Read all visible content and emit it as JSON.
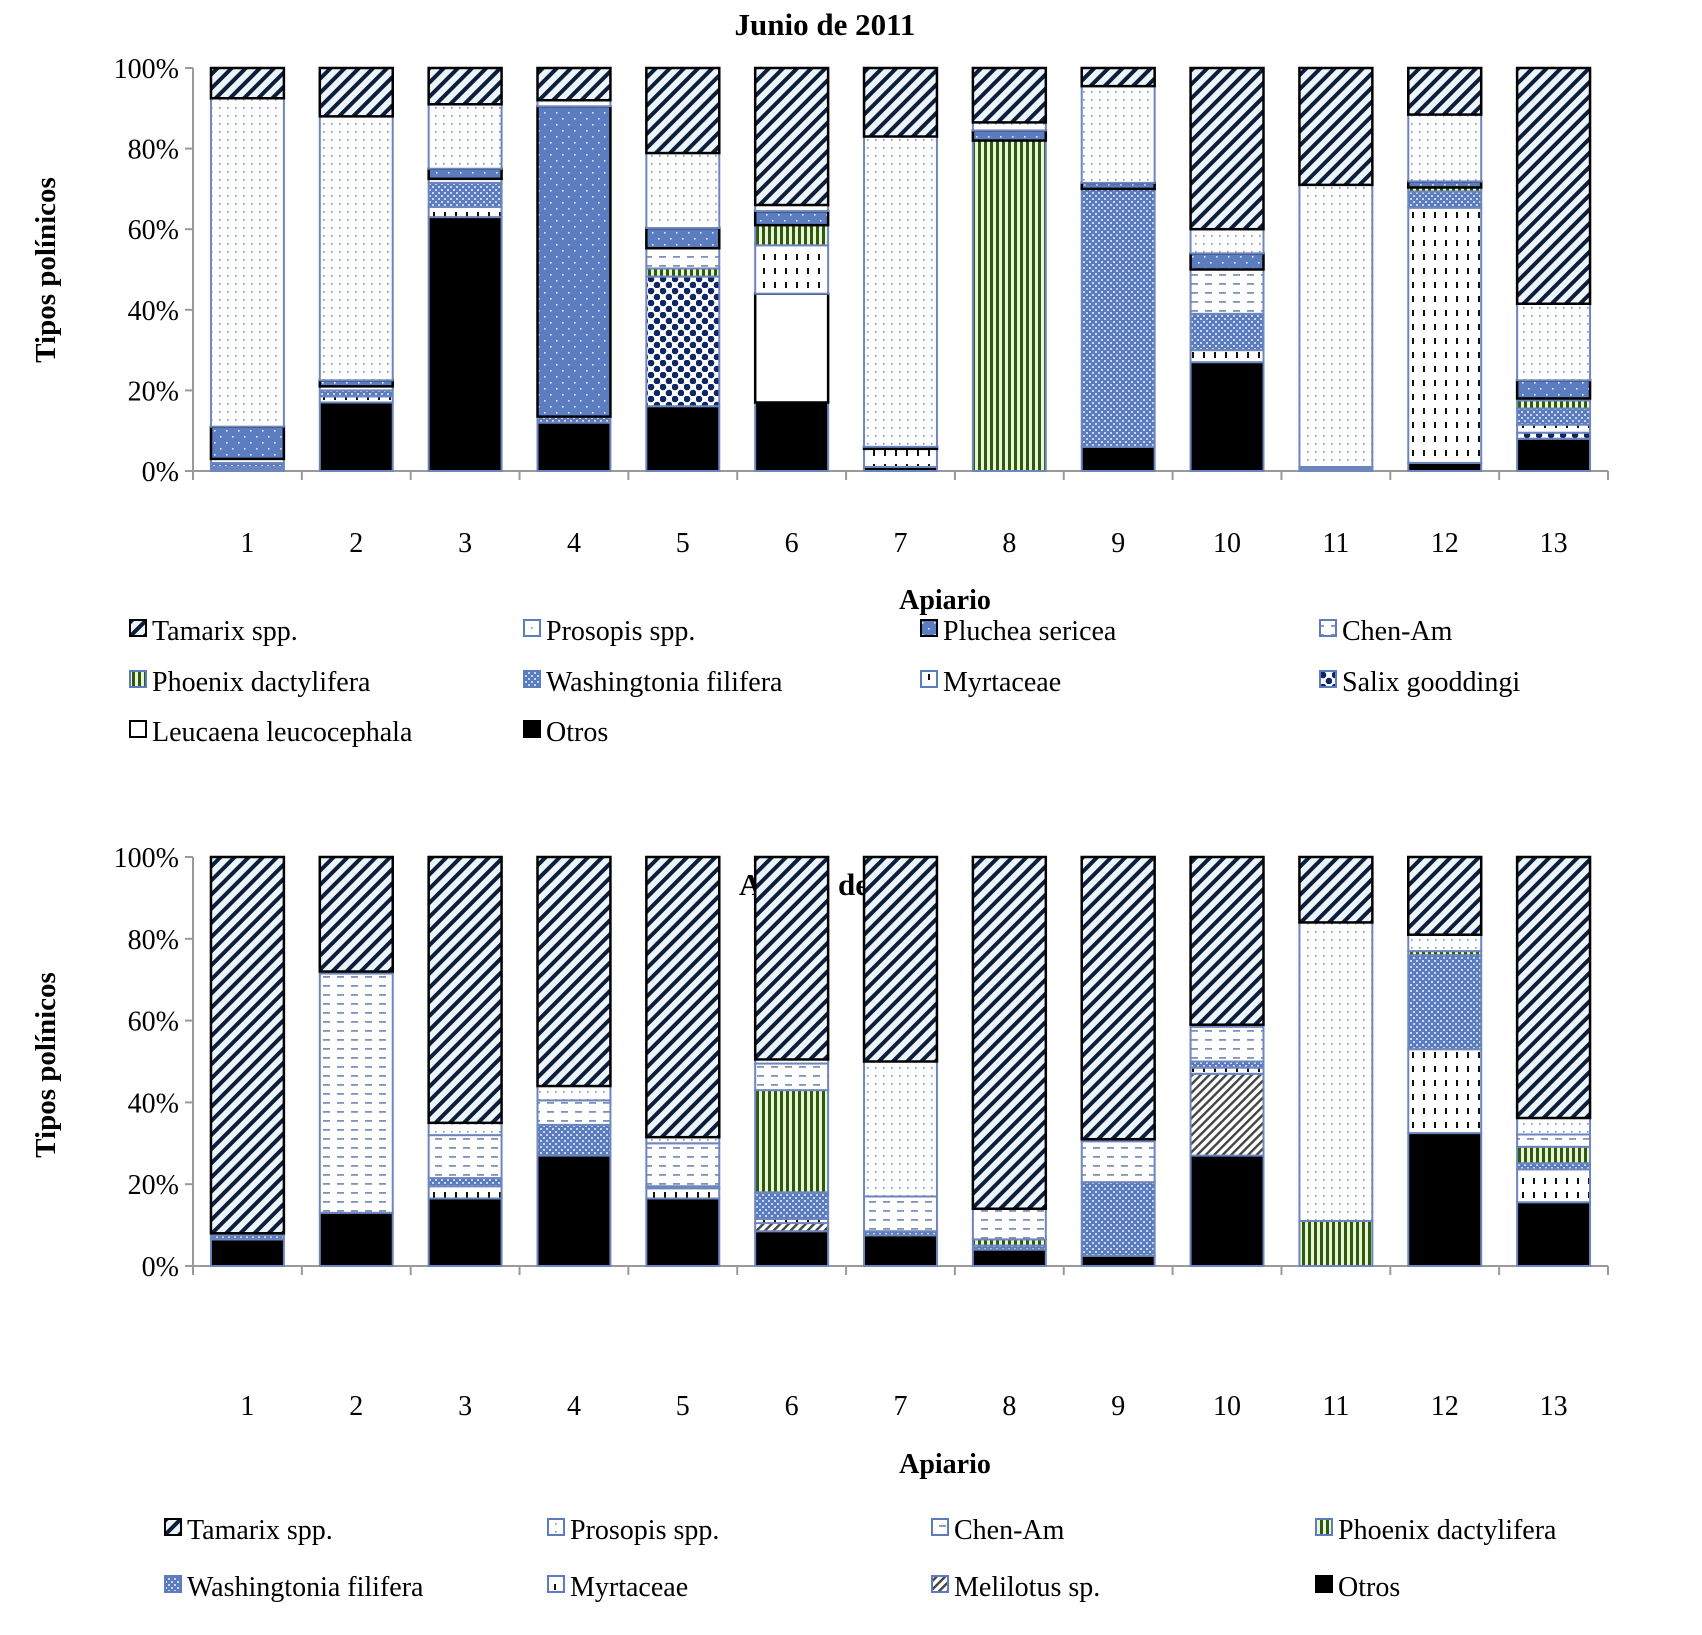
{
  "chart_data": [
    {
      "type": "bar",
      "stacked": true,
      "normalized": true,
      "title": "Junio de 2011",
      "xlabel": "Apiario",
      "ylabel": "Tipos polínicos",
      "ylim": [
        0,
        100
      ],
      "yticks": [
        "0%",
        "20%",
        "40%",
        "60%",
        "80%",
        "100%"
      ],
      "grid": false,
      "legend_position": "bottom",
      "categories": [
        "1",
        "2",
        "3",
        "4",
        "5",
        "6",
        "7",
        "8",
        "9",
        "10",
        "11",
        "12",
        "13"
      ],
      "legend_order": [
        "Tamarix spp.",
        "Prosopis spp.",
        "Pluchea sericea",
        "Chen-Am",
        "Phoenix dactylifera",
        "Washingtonia filifera",
        "Myrtaceae",
        "Salix  gooddingi",
        "Leucaena leucocephala",
        "Otros"
      ],
      "series": [
        {
          "name": "Otros",
          "pattern": "solid-black",
          "values": [
            0.5,
            17,
            63,
            12,
            16,
            17,
            1,
            0,
            6,
            27,
            0.5,
            2,
            8
          ]
        },
        {
          "name": "Leucaena leucocephala",
          "pattern": "white",
          "values": [
            0,
            0,
            0,
            0,
            0,
            27,
            0,
            0,
            0,
            0,
            0,
            0,
            0
          ]
        },
        {
          "name": "Salix  gooddingi",
          "pattern": "salix",
          "values": [
            0,
            0,
            0,
            0,
            32,
            0,
            0,
            0,
            0,
            0,
            0,
            0,
            1.5
          ]
        },
        {
          "name": "Myrtaceae",
          "pattern": "myrtaceae",
          "values": [
            0.5,
            1.5,
            2.5,
            0,
            0,
            12,
            4.5,
            0,
            0,
            3,
            0,
            63,
            2
          ]
        },
        {
          "name": "Washingtonia filifera",
          "pattern": "washingtonia",
          "values": [
            1,
            1.5,
            6,
            1.5,
            0,
            0,
            0,
            0,
            64,
            9,
            0.5,
            4,
            4
          ]
        },
        {
          "name": "Phoenix dactylifera",
          "pattern": "phoenix",
          "values": [
            0,
            0,
            0,
            0,
            2,
            5,
            0,
            82,
            0,
            0,
            0,
            1,
            2
          ]
        },
        {
          "name": "Chen-Am",
          "pattern": "chen-am",
          "values": [
            1,
            1,
            1,
            0,
            5,
            0,
            0,
            0,
            0,
            11,
            0,
            0,
            0.5
          ]
        },
        {
          "name": "Pluchea sericea",
          "pattern": "pluchea",
          "values": [
            8,
            1.5,
            2.5,
            77,
            5,
            3.5,
            0.5,
            2.5,
            1.5,
            4,
            0,
            1.5,
            4.5
          ]
        },
        {
          "name": "Prosopis spp.",
          "pattern": "prosopis",
          "values": [
            81.5,
            65.5,
            16,
            1.5,
            18.5,
            1.5,
            77,
            2,
            24,
            6,
            70,
            16.5,
            19
          ]
        },
        {
          "name": "Tamarix spp.",
          "pattern": "tamarix",
          "values": [
            7.5,
            12,
            9,
            8,
            21,
            34,
            17,
            13.5,
            4.5,
            40,
            29,
            11.5,
            58.5
          ]
        }
      ]
    },
    {
      "type": "bar",
      "stacked": true,
      "normalized": true,
      "title": "Agosto de 2011",
      "xlabel": "Apiario",
      "ylabel": "Tipos polínicos",
      "ylim": [
        0,
        100
      ],
      "yticks": [
        "0%",
        "20%",
        "40%",
        "60%",
        "80%",
        "100%"
      ],
      "grid": false,
      "legend_position": "bottom",
      "categories": [
        "1",
        "2",
        "3",
        "4",
        "5",
        "6",
        "7",
        "8",
        "9",
        "10",
        "11",
        "12",
        "13"
      ],
      "legend_order": [
        "Tamarix spp.",
        "Prosopis spp.",
        "Chen-Am",
        "Phoenix dactylifera",
        "Washingtonia filifera",
        "Myrtaceae",
        "Melilotus sp.",
        "Otros"
      ],
      "series": [
        {
          "name": "Otros",
          "pattern": "solid-black",
          "values": [
            6.5,
            13,
            16.5,
            27,
            16.5,
            8.5,
            7.5,
            4,
            2.5,
            27,
            0,
            32.5,
            15.5
          ]
        },
        {
          "name": "Melilotus sp.",
          "pattern": "melilotus",
          "values": [
            0,
            0,
            0,
            0,
            0,
            2,
            0,
            0,
            0,
            20,
            0,
            0,
            0
          ]
        },
        {
          "name": "Myrtaceae",
          "pattern": "myrtaceae",
          "values": [
            0,
            0,
            3,
            0,
            2.5,
            1,
            0,
            0,
            0,
            1.5,
            0,
            20.5,
            8
          ]
        },
        {
          "name": "Washingtonia filifera",
          "pattern": "washingtonia",
          "values": [
            1,
            0,
            2,
            7.5,
            0.5,
            6.5,
            1,
            1,
            18,
            1.5,
            0,
            23,
            1.5
          ]
        },
        {
          "name": "Phoenix dactylifera",
          "pattern": "phoenix",
          "values": [
            0,
            0,
            0,
            0,
            0,
            25,
            0,
            1.5,
            0,
            0,
            11,
            1,
            4
          ]
        },
        {
          "name": "Chen-Am",
          "pattern": "chen-am",
          "values": [
            0.5,
            58.5,
            10.5,
            6,
            10.5,
            6.5,
            8.5,
            7.5,
            10,
            8.5,
            0,
            0,
            3
          ]
        },
        {
          "name": "Prosopis spp.",
          "pattern": "prosopis",
          "values": [
            0,
            0.5,
            3,
            3.5,
            1.5,
            1,
            33,
            0,
            0.5,
            0.5,
            73,
            4,
            4
          ]
        },
        {
          "name": "Tamarix spp.",
          "pattern": "tamarix",
          "values": [
            92,
            28,
            65,
            56,
            68.5,
            49.5,
            50,
            86,
            69,
            41,
            16,
            19,
            63.5
          ]
        }
      ]
    }
  ]
}
